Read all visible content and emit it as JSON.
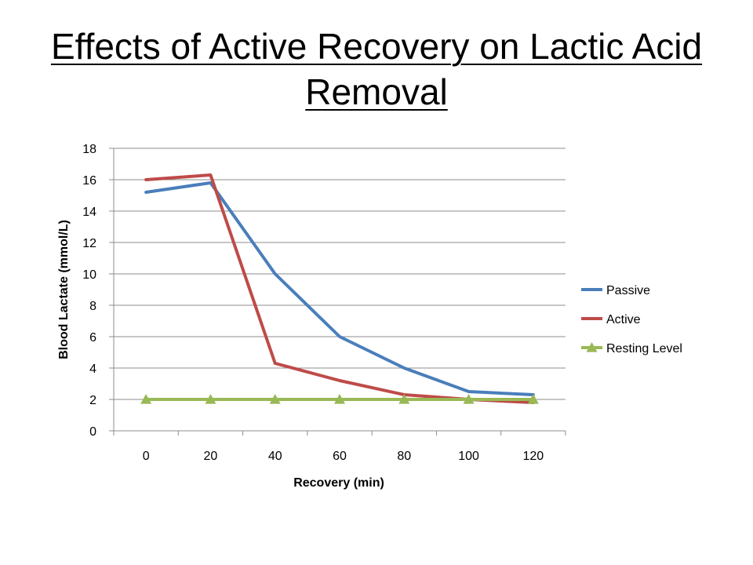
{
  "slide": {
    "title": "Effects of Active Recovery on Lactic Acid Removal"
  },
  "chart_data": {
    "type": "line",
    "title": "",
    "xlabel": "Recovery (min)",
    "ylabel": "Blood Lactate (mmol/L)",
    "categories": [
      "0",
      "20",
      "40",
      "60",
      "80",
      "100",
      "120"
    ],
    "ylim": [
      0,
      18
    ],
    "yticks": [
      0,
      2,
      4,
      6,
      8,
      10,
      12,
      14,
      16,
      18
    ],
    "grid": true,
    "legend_position": "right",
    "series": [
      {
        "name": "Passive",
        "color": "#4a7ebb",
        "marker": "none",
        "values": [
          15.2,
          15.8,
          10,
          6,
          4,
          2.5,
          2.3
        ]
      },
      {
        "name": "Active",
        "color": "#be4b48",
        "marker": "none",
        "values": [
          16,
          16.3,
          4.3,
          3.2,
          2.3,
          2,
          1.8
        ]
      },
      {
        "name": "Resting Level",
        "color": "#98b954",
        "marker": "triangle",
        "values": [
          2,
          2,
          2,
          2,
          2,
          2,
          2
        ]
      }
    ]
  }
}
